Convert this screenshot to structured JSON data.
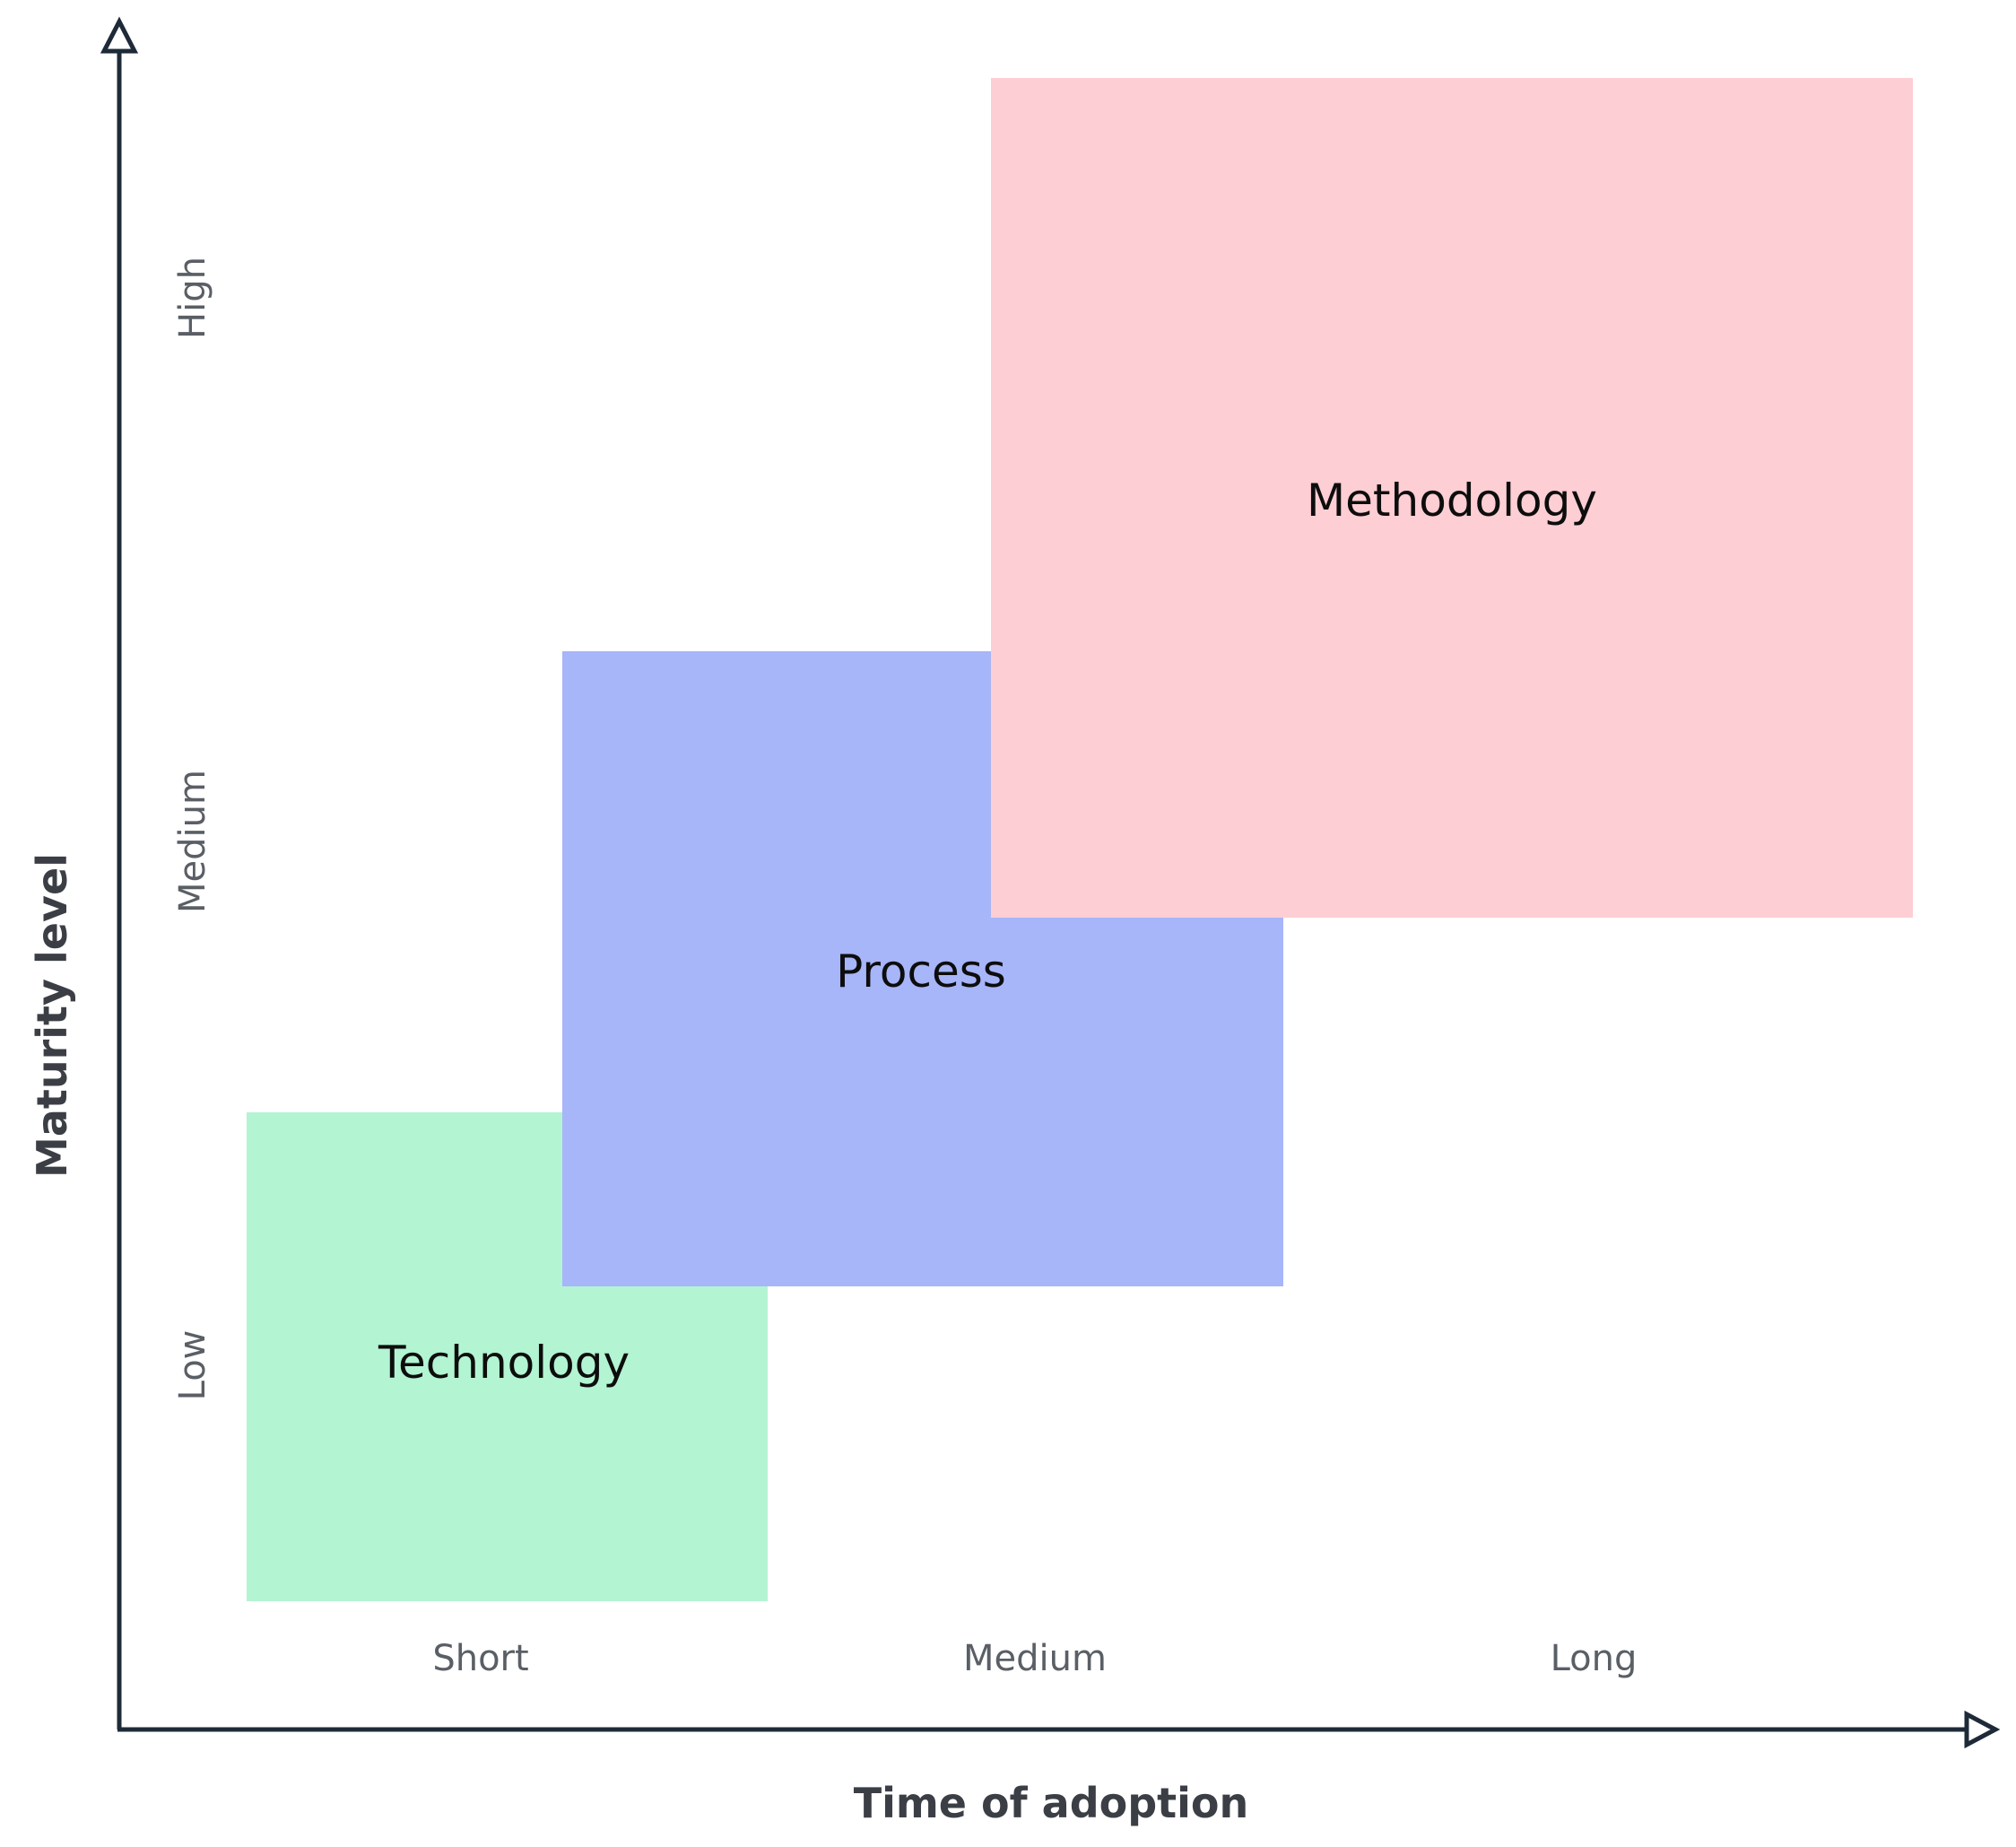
{
  "axes": {
    "x_title": "Time of adoption",
    "y_title": "Maturity level",
    "x_ticks": [
      "Short",
      "Medium",
      "Long"
    ],
    "y_ticks": [
      "Low",
      "Medium",
      "High"
    ],
    "axis_color": "#1e2a38"
  },
  "boxes": {
    "technology": {
      "label": "Technology",
      "color": "#b3f4d2"
    },
    "process": {
      "label": "Process",
      "color": "#a7b5f9"
    },
    "methodology": {
      "label": "Methodology",
      "color": "#fdced3"
    }
  }
}
